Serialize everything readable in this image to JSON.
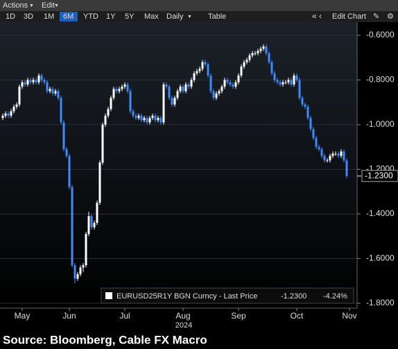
{
  "toolbar": {
    "menus": [
      "Actions",
      "Edit"
    ],
    "buttons": [
      "1D",
      "3D",
      "1M",
      "6M",
      "YTD",
      "1Y",
      "5Y",
      "Max",
      "Daily",
      "Table"
    ],
    "active": "6M",
    "edit_chart": "Edit Chart"
  },
  "source": "Source: Bloomberg, Cable FX Macro",
  "chart_data": {
    "type": "candlestick",
    "series": [
      {
        "name": "EURUSD25R1Y BGN Curncy - Last Price",
        "up_color": "#ffffff",
        "down_color": "#3d8bff",
        "open": [
          -0.97,
          -0.96,
          -0.95,
          -0.96,
          -0.94,
          -0.92,
          -0.91,
          -0.83,
          -0.81,
          -0.82,
          -0.8,
          -0.81,
          -0.8,
          -0.81,
          -0.78,
          -0.8,
          -0.81,
          -0.85,
          -0.84,
          -0.86,
          -0.85,
          -0.88,
          -0.99,
          -1.11,
          -1.14,
          -1.28,
          -1.63,
          -1.69,
          -1.67,
          -1.64,
          -1.63,
          -1.49,
          -1.41,
          -1.46,
          -1.44,
          -1.35,
          -1.17,
          -1.0,
          -0.96,
          -0.93,
          -0.88,
          -0.84,
          -0.85,
          -0.84,
          -0.83,
          -0.82,
          -0.85,
          -0.94,
          -0.96,
          -0.97,
          -0.96,
          -0.98,
          -0.97,
          -0.99,
          -0.97,
          -0.96,
          -0.98,
          -0.97,
          -0.99,
          -0.82,
          -0.83,
          -0.88,
          -0.91,
          -0.88,
          -0.85,
          -0.83,
          -0.85,
          -0.82,
          -0.83,
          -0.8,
          -0.77,
          -0.76,
          -0.75,
          -0.72,
          -0.73,
          -0.78,
          -0.85,
          -0.88,
          -0.86,
          -0.85,
          -0.83,
          -0.8,
          -0.81,
          -0.82,
          -0.83,
          -0.81,
          -0.78,
          -0.74,
          -0.72,
          -0.71,
          -0.69,
          -0.68,
          -0.68,
          -0.67,
          -0.66,
          -0.65,
          -0.68,
          -0.72,
          -0.77,
          -0.8,
          -0.81,
          -0.82,
          -0.81,
          -0.81,
          -0.8,
          -0.82,
          -0.78,
          -0.8,
          -0.88,
          -0.91,
          -0.92,
          -0.97,
          -1.02,
          -1.06,
          -1.1,
          -1.11,
          -1.14,
          -1.16,
          -1.16,
          -1.14,
          -1.13,
          -1.13,
          -1.14,
          -1.12,
          -1.16
        ],
        "high": [
          -0.95,
          -0.94,
          -0.94,
          -0.93,
          -0.91,
          -0.9,
          -0.82,
          -0.8,
          -0.8,
          -0.79,
          -0.79,
          -0.79,
          -0.79,
          -0.77,
          -0.77,
          -0.79,
          -0.8,
          -0.83,
          -0.83,
          -0.84,
          -0.84,
          -0.87,
          -0.98,
          -1.1,
          -1.13,
          -1.27,
          -1.62,
          -1.66,
          -1.63,
          -1.62,
          -1.48,
          -1.39,
          -1.4,
          -1.43,
          -1.34,
          -1.16,
          -0.99,
          -0.95,
          -0.92,
          -0.87,
          -0.83,
          -0.83,
          -0.83,
          -0.82,
          -0.81,
          -0.81,
          -0.84,
          -0.93,
          -0.95,
          -0.95,
          -0.95,
          -0.96,
          -0.96,
          -0.96,
          -0.95,
          -0.95,
          -0.96,
          -0.96,
          -0.81,
          -0.81,
          -0.82,
          -0.87,
          -0.87,
          -0.84,
          -0.82,
          -0.82,
          -0.81,
          -0.81,
          -0.79,
          -0.76,
          -0.75,
          -0.74,
          -0.71,
          -0.71,
          -0.72,
          -0.77,
          -0.84,
          -0.85,
          -0.84,
          -0.82,
          -0.79,
          -0.79,
          -0.8,
          -0.81,
          -0.8,
          -0.77,
          -0.73,
          -0.71,
          -0.7,
          -0.68,
          -0.67,
          -0.67,
          -0.66,
          -0.65,
          -0.64,
          -0.64,
          -0.67,
          -0.71,
          -0.76,
          -0.79,
          -0.8,
          -0.8,
          -0.8,
          -0.79,
          -0.79,
          -0.77,
          -0.77,
          -0.79,
          -0.87,
          -0.9,
          -0.91,
          -0.96,
          -1.01,
          -1.05,
          -1.09,
          -1.1,
          -1.13,
          -1.15,
          -1.13,
          -1.12,
          -1.12,
          -1.12,
          -1.11,
          -1.11,
          -1.15
        ],
        "low": [
          -0.98,
          -0.97,
          -0.97,
          -0.97,
          -0.95,
          -0.93,
          -0.92,
          -0.84,
          -0.83,
          -0.83,
          -0.82,
          -0.82,
          -0.82,
          -0.82,
          -0.81,
          -0.82,
          -0.86,
          -0.86,
          -0.87,
          -0.87,
          -0.89,
          -1.0,
          -1.12,
          -1.15,
          -1.29,
          -1.64,
          -1.71,
          -1.7,
          -1.68,
          -1.66,
          -1.64,
          -1.5,
          -1.47,
          -1.47,
          -1.45,
          -1.36,
          -1.18,
          -1.01,
          -0.97,
          -0.94,
          -0.89,
          -0.86,
          -0.86,
          -0.85,
          -0.84,
          -0.86,
          -0.95,
          -0.97,
          -0.98,
          -0.98,
          -0.99,
          -0.99,
          -1.0,
          -1.0,
          -0.98,
          -0.99,
          -0.99,
          -1.0,
          -1.0,
          -0.84,
          -0.89,
          -0.92,
          -0.92,
          -0.89,
          -0.86,
          -0.86,
          -0.86,
          -0.84,
          -0.84,
          -0.81,
          -0.78,
          -0.77,
          -0.76,
          -0.74,
          -0.79,
          -0.86,
          -0.89,
          -0.89,
          -0.87,
          -0.86,
          -0.84,
          -0.82,
          -0.83,
          -0.84,
          -0.84,
          -0.82,
          -0.79,
          -0.75,
          -0.73,
          -0.72,
          -0.7,
          -0.69,
          -0.69,
          -0.68,
          -0.67,
          -0.69,
          -0.73,
          -0.78,
          -0.81,
          -0.82,
          -0.83,
          -0.83,
          -0.82,
          -0.82,
          -0.83,
          -0.83,
          -0.81,
          -0.89,
          -0.92,
          -0.93,
          -0.98,
          -1.03,
          -1.07,
          -1.11,
          -1.12,
          -1.15,
          -1.17,
          -1.17,
          -1.17,
          -1.15,
          -1.14,
          -1.15,
          -1.15,
          -1.17,
          -1.24
        ],
        "close": [
          -0.96,
          -0.95,
          -0.96,
          -0.94,
          -0.92,
          -0.91,
          -0.83,
          -0.81,
          -0.82,
          -0.8,
          -0.81,
          -0.8,
          -0.81,
          -0.78,
          -0.8,
          -0.81,
          -0.85,
          -0.84,
          -0.86,
          -0.85,
          -0.88,
          -0.99,
          -1.11,
          -1.14,
          -1.28,
          -1.63,
          -1.69,
          -1.67,
          -1.64,
          -1.63,
          -1.49,
          -1.41,
          -1.46,
          -1.44,
          -1.35,
          -1.17,
          -1.0,
          -0.96,
          -0.93,
          -0.88,
          -0.84,
          -0.85,
          -0.84,
          -0.83,
          -0.82,
          -0.85,
          -0.94,
          -0.96,
          -0.97,
          -0.96,
          -0.98,
          -0.97,
          -0.99,
          -0.97,
          -0.96,
          -0.98,
          -0.97,
          -0.99,
          -0.82,
          -0.83,
          -0.88,
          -0.91,
          -0.88,
          -0.85,
          -0.83,
          -0.85,
          -0.82,
          -0.83,
          -0.8,
          -0.77,
          -0.76,
          -0.75,
          -0.72,
          -0.73,
          -0.78,
          -0.85,
          -0.88,
          -0.86,
          -0.85,
          -0.83,
          -0.8,
          -0.81,
          -0.82,
          -0.83,
          -0.81,
          -0.78,
          -0.74,
          -0.72,
          -0.71,
          -0.69,
          -0.68,
          -0.68,
          -0.67,
          -0.66,
          -0.65,
          -0.68,
          -0.72,
          -0.77,
          -0.8,
          -0.81,
          -0.82,
          -0.81,
          -0.81,
          -0.8,
          -0.82,
          -0.78,
          -0.8,
          -0.88,
          -0.91,
          -0.92,
          -0.97,
          -1.02,
          -1.06,
          -1.1,
          -1.11,
          -1.14,
          -1.16,
          -1.16,
          -1.14,
          -1.13,
          -1.13,
          -1.14,
          -1.12,
          -1.16,
          -1.23
        ]
      }
    ],
    "last_price": {
      "value": -1.23,
      "label": "-1.2300"
    },
    "change": {
      "value": -4.24,
      "label": "-4.24%"
    },
    "xlabel": "2024",
    "xlim": [
      -1,
      127.75
    ],
    "xticks": [
      {
        "value": 7,
        "label": "May"
      },
      {
        "value": 24,
        "label": "Jun"
      },
      {
        "value": 44,
        "label": "Jul"
      },
      {
        "value": 65,
        "label": "Aug"
      },
      {
        "value": 85,
        "label": "Sep"
      },
      {
        "value": 106,
        "label": "Oct"
      },
      {
        "value": 125,
        "label": "Nov"
      }
    ],
    "ylim": [
      -1.822,
      -0.541
    ],
    "yticks": [
      {
        "value": -0.6,
        "label": "-0.6000"
      },
      {
        "value": -0.8,
        "label": "-0.8000"
      },
      {
        "value": -1.0,
        "label": "-1.0000"
      },
      {
        "value": -1.2,
        "label": "-1.2000"
      },
      {
        "value": -1.4,
        "label": "-1.4000"
      },
      {
        "value": -1.6,
        "label": "-1.6000"
      },
      {
        "value": -1.8,
        "label": "-1.8000"
      }
    ],
    "grid": true
  }
}
